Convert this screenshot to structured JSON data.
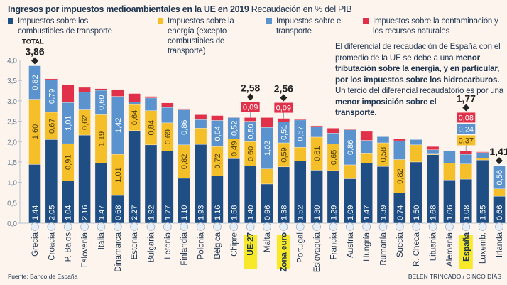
{
  "header": {
    "title": "Ingresos por impuestos medioambientales en la UE en 2019",
    "subtitle": "Recaudación en % del PIB"
  },
  "legend": [
    {
      "label": "Impuestos sobre los combustibles de transporte",
      "color": "#1f4e85"
    },
    {
      "label": "Impuestos sobre la energía (excepto combustibles de transporte)",
      "color": "#f5bf2a"
    },
    {
      "label": "Impuestos sobre el transporte",
      "color": "#5b93cf"
    },
    {
      "label": "Impuestos sobre la contaminación y los recursos naturales",
      "color": "#e0304a"
    }
  ],
  "note": {
    "p1": "El diferencial de recaudación de España con el promedio de la UE se debe a una ",
    "b1": "menor tributación sobre la energía, y en particular, por los impuestos sobre los hidrocarburos.",
    "p2": " Un tercio del diferencial recaudatorio es por una ",
    "b2": "menor imposición sobre el transporte."
  },
  "footer": {
    "source": "Fuente: Banco de España",
    "credit": "BELÉN TRINCADO / CINCO DÍAS"
  },
  "chart_data": {
    "type": "bar",
    "stacked": true,
    "ylim": [
      0,
      4
    ],
    "yticks": [
      "0,0",
      "0,5",
      "1,0",
      "1,5",
      "2,0",
      "2,5",
      "3,0",
      "3,5",
      "4,0"
    ],
    "grid": false,
    "highlight": [
      "UE-27",
      "Zona euro",
      "España"
    ],
    "highlight_color": "#f7e82a",
    "categories": [
      "Grecia",
      "Croacia",
      "P. Bajos",
      "Eslovenia",
      "Italia",
      "Dinamarca",
      "Estonia",
      "Bulgaria",
      "Letonia",
      "Finlandia",
      "Polonia",
      "Bélgica",
      "Chipre",
      "UE-27",
      "Malta",
      "Zona euro",
      "Portugal",
      "Eslovaquia",
      "Francia",
      "Austria",
      "Hungría",
      "Rumanía",
      "Suecia",
      "R. Checa",
      "Lituania",
      "Alemania",
      "España",
      "Luxemb.",
      "Irlanda"
    ],
    "series": [
      {
        "name": "Impuestos sobre los combustibles de transporte",
        "color": "#1f4e85",
        "values": [
          1.44,
          2.05,
          1.04,
          2.16,
          1.47,
          0.68,
          2.27,
          1.92,
          1.77,
          1.1,
          1.93,
          1.16,
          1.58,
          1.4,
          0.96,
          1.38,
          1.52,
          1.3,
          1.29,
          1.09,
          1.47,
          1.39,
          0.74,
          1.5,
          1.68,
          1.06,
          1.08,
          1.55,
          0.66
        ],
        "labels": [
          "1,44",
          "2,05",
          "1,04",
          "2,16",
          "1,47",
          "0,68",
          "2,27",
          "1,92",
          "1,77",
          "1,10",
          "1,93",
          "1,16",
          "1,58",
          "1,40",
          "0,96",
          "1,38",
          "1,52",
          "1,30",
          "1,29",
          "1,09",
          "1,47",
          "1,39",
          "0,74",
          "1,50",
          "1,68",
          "1,06",
          "1,08",
          "1,55",
          "0,66"
        ]
      },
      {
        "name": "Impuestos sobre la energía (excepto combustibles de transporte)",
        "color": "#f5bf2a",
        "values": [
          1.6,
          0.67,
          0.91,
          0.62,
          1.19,
          1.01,
          0.64,
          0.84,
          0.69,
          0.82,
          0.4,
          0.72,
          0.49,
          0.6,
          0.37,
          0.59,
          0.34,
          0.81,
          0.65,
          0.34,
          0.25,
          0.58,
          0.82,
          0.42,
          0.03,
          0.41,
          0.37,
          0.05,
          0.18
        ],
        "labels": [
          "1,60",
          "0,67",
          "0,91",
          "0,62",
          "1,19",
          "1,01",
          "0,64",
          "0,84",
          "0,69",
          "0,82",
          "",
          "0,72",
          "0,49",
          "0,60",
          "",
          "0,59",
          "",
          "0,81",
          "0,65",
          "",
          "",
          "0,58",
          "0,82",
          "",
          "",
          "",
          "",
          "",
          ""
        ]
      },
      {
        "name": "Impuestos sobre el transporte",
        "color": "#5b93cf",
        "values": [
          0.82,
          0.79,
          1.01,
          0.43,
          0.6,
          1.42,
          0.06,
          0.31,
          0.38,
          0.86,
          0.21,
          0.64,
          0.52,
          0.5,
          1.02,
          0.51,
          0.67,
          0.26,
          0.27,
          0.86,
          0.31,
          0.15,
          0.46,
          0.13,
          0.09,
          0.31,
          0.24,
          0.13,
          0.56
        ],
        "labels": [
          "0,82",
          "0,79",
          "1,01",
          "",
          "0,60",
          "1,42",
          "",
          "",
          "",
          "0,86",
          "",
          "0,64",
          "0,52",
          "0,50",
          "1,02",
          "0,51",
          "0,67",
          "",
          "",
          "0,86",
          "",
          "",
          "",
          "",
          "",
          "",
          "",
          "",
          "0,56"
        ]
      },
      {
        "name": "Impuestos sobre la contaminación y los recursos naturales",
        "color": "#e0304a",
        "values": [
          0,
          0.03,
          0.43,
          0.12,
          0.04,
          0.17,
          0.21,
          0.04,
          0.11,
          0.03,
          0.12,
          0.12,
          0.01,
          0.09,
          0.24,
          0.09,
          0.02,
          0.02,
          0.12,
          0.02,
          0.22,
          0,
          0.05,
          0,
          0.08,
          0,
          0.08,
          0.02,
          0.01
        ],
        "labels": [
          "",
          "",
          "",
          "",
          "",
          "",
          "",
          "",
          "",
          "",
          "",
          "",
          "",
          "",
          "",
          "",
          "",
          "",
          "",
          "",
          "",
          "",
          "",
          "",
          "",
          "",
          "",
          "",
          ""
        ]
      }
    ],
    "annotations": [
      {
        "category": "Grecia",
        "total": "3,86",
        "label": "TOTAL"
      },
      {
        "category": "UE-27",
        "total": "2,58",
        "callouts": [
          "0,09"
        ]
      },
      {
        "category": "Zona euro",
        "total": "2,56",
        "callouts": [
          "0,09"
        ]
      },
      {
        "category": "España",
        "total": "1,77",
        "callouts": [
          "0,08",
          "0,24",
          "0,37"
        ]
      },
      {
        "category": "Irlanda",
        "total": "1,41"
      }
    ]
  }
}
